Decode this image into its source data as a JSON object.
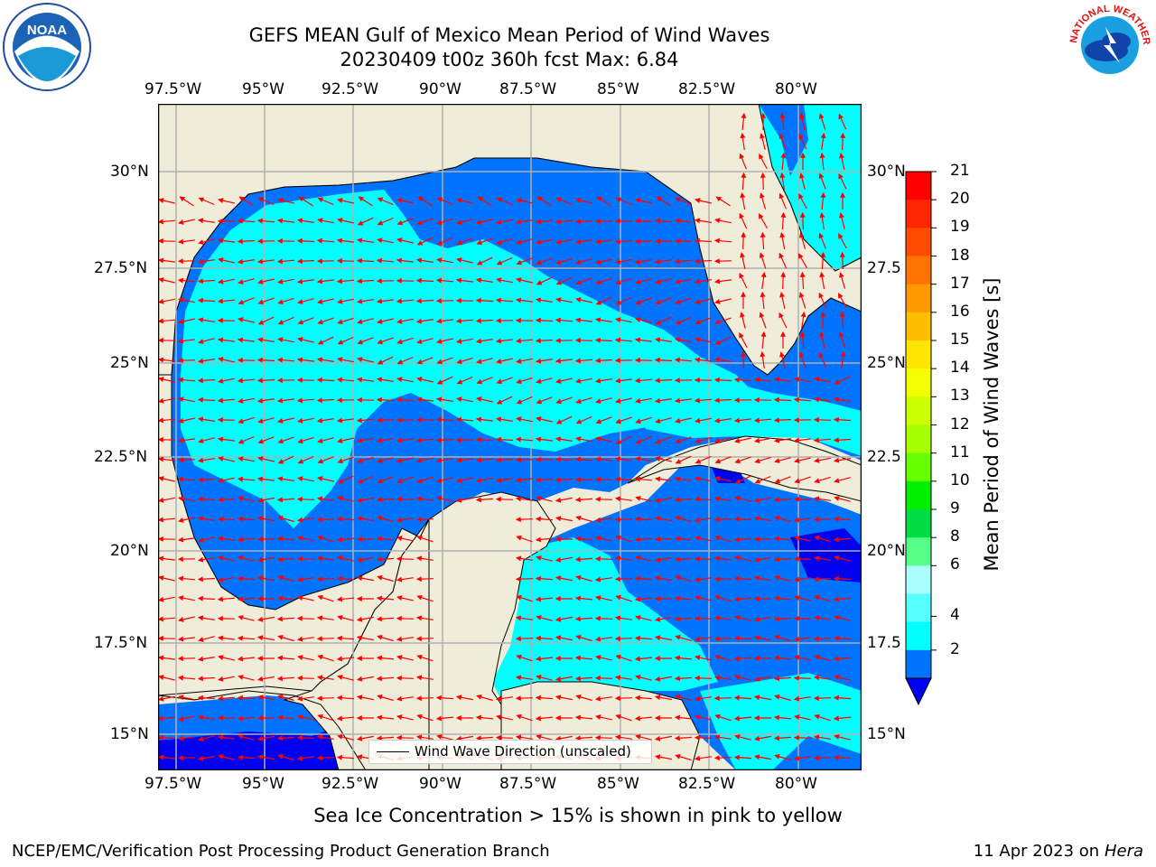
{
  "header": {
    "title_line1": "GEFS MEAN Gulf of Mexico Mean Period of Wind Waves",
    "title_line2": "20230409 t00z 360h fcst   Max: 6.84"
  },
  "map": {
    "lon_ticks": [
      "97.5°W",
      "95°W",
      "92.5°W",
      "90°W",
      "87.5°W",
      "85°W",
      "82.5°W",
      "80°W"
    ],
    "lat_ticks_left": [
      "30°N",
      "27.5°N",
      "25°N",
      "22.5°N",
      "20°N",
      "17.5°N",
      "15°N"
    ],
    "lat_ticks_right": [
      "30°N",
      "27.5",
      "25°N",
      "22.5",
      "20°N",
      "17.5",
      "15°N"
    ],
    "legend_label": "Wind Wave Direction (unscaled)",
    "colors": {
      "land": "#efedd9",
      "dark_blue": "#0000ee",
      "blue": "#0073ff",
      "cyan": "#00ffff",
      "arrow": "#ff0000",
      "grid": "#b0b0b0"
    }
  },
  "colorbar": {
    "label": "Mean Period of Wind Waves [s]",
    "ticks": [
      "21",
      "20",
      "19",
      "18",
      "17",
      "16",
      "15",
      "14",
      "13",
      "12",
      "11",
      "10",
      "9",
      "8",
      "6",
      "4",
      "2"
    ],
    "colors": [
      "#ff0000",
      "#ff2600",
      "#ff4c00",
      "#ff7300",
      "#ff9900",
      "#ffbf00",
      "#ffe600",
      "#f2ff00",
      "#ccff00",
      "#a6ff00",
      "#66ff00",
      "#00ee00",
      "#00dd44",
      "#55ff88",
      "#aaffff",
      "#55ffff",
      "#00ffff",
      "#0073ff"
    ],
    "extend_color": "#0000ee"
  },
  "footer": {
    "sea_ice_note": "Sea Ice Concentration > 15% is shown in pink to yellow",
    "credit": "NCEP/EMC/Verification Post Processing Product Generation Branch",
    "date": "11 Apr 2023 on ",
    "machine": "Hera"
  },
  "logos": {
    "noaa_text": "NOAA",
    "nws_text": "NATIONAL WEATHER SERVICE"
  }
}
